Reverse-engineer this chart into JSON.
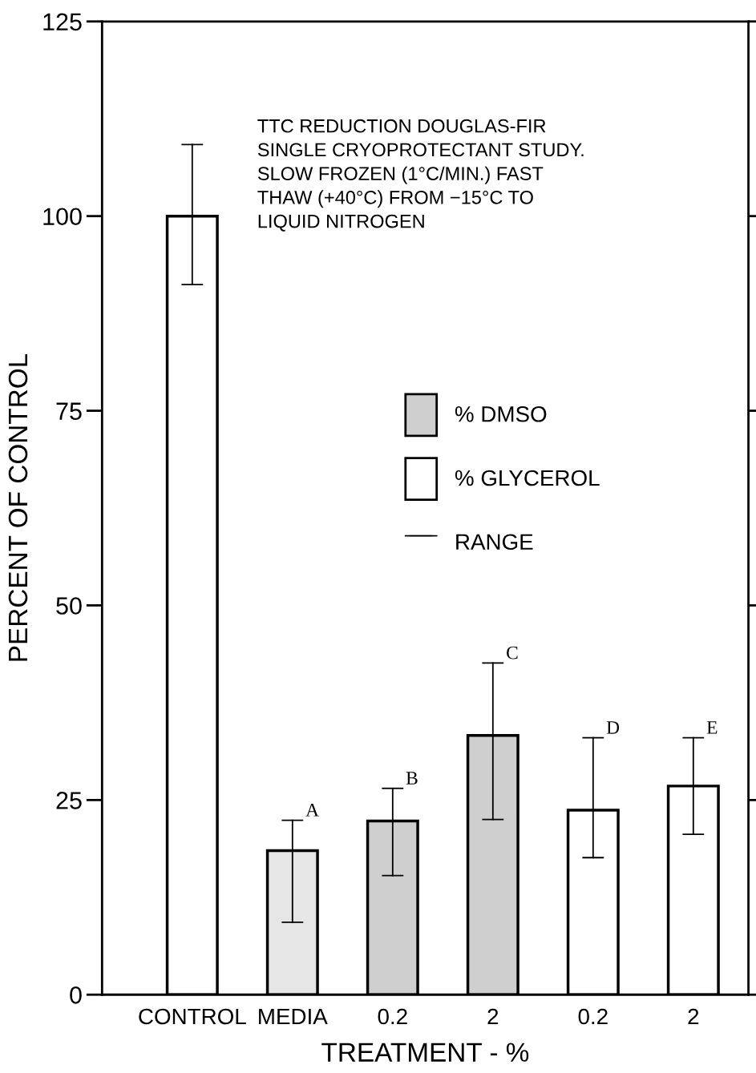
{
  "chart_data": {
    "type": "bar",
    "title": "TTC REDUCTION DOUGLAS-FIR\nSINGLE CRYOPROTECTANT STUDY.\nSLOW FROZEN (1°C/MIN.) FAST\nTHAW (+40°C) FROM −15°C TO\nLIQUID NITROGEN",
    "xlabel": "TREATMENT - %",
    "ylabel": "PERCENT OF CONTROL",
    "categories": [
      "CONTROL",
      "MEDIA",
      "0.2",
      "2",
      "0.2",
      "2"
    ],
    "series": [
      {
        "colors": [
          "#ffffff",
          "#e6e6e6",
          null,
          null,
          null,
          null
        ],
        "values": [
          100,
          18.5,
          null,
          null,
          null,
          null
        ],
        "errors": [
          [
            91.2,
            109.2
          ],
          [
            9.3,
            22.4
          ],
          null,
          null,
          null,
          null
        ]
      },
      {
        "name": "% DMSO",
        "color": "#cfcfcf",
        "values": [
          null,
          null,
          22.3,
          33.3,
          null,
          null
        ],
        "errors": [
          null,
          null,
          [
            15.3,
            26.5
          ],
          [
            22.5,
            42.6
          ],
          null,
          null
        ]
      },
      {
        "name": "% GLYCEROL",
        "color": "#ffffff",
        "values": [
          null,
          null,
          null,
          null,
          23.7,
          26.8
        ],
        "errors": [
          null,
          null,
          null,
          null,
          [
            17.6,
            33.0
          ],
          [
            20.6,
            33.0
          ]
        ]
      }
    ],
    "value_labels": [
      null,
      "A",
      "B",
      "C",
      "D",
      "E"
    ],
    "annotations": [
      "RANGE"
    ],
    "ylim": [
      0,
      125
    ],
    "yticks": [
      0,
      25,
      50,
      75,
      100,
      125
    ],
    "legend": "right",
    "grid": false
  }
}
